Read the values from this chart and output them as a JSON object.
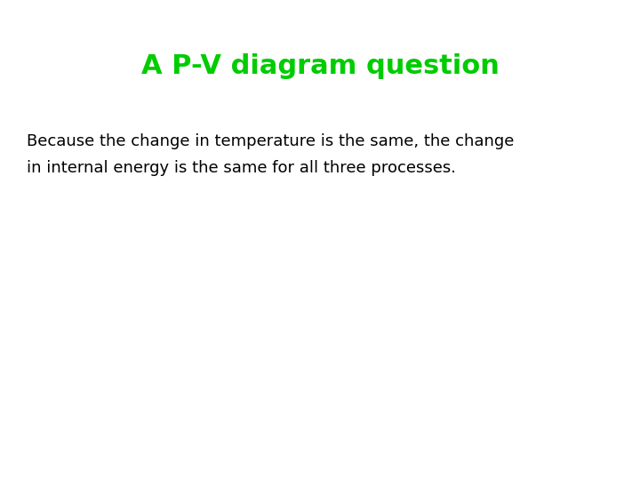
{
  "title": "A P-V diagram question",
  "title_color": "#00cc00",
  "title_fontsize": 22,
  "title_fontweight": "bold",
  "body_text_line1": "Because the change in temperature is the same, the change",
  "body_text_line2": "in internal energy is the same for all three processes.",
  "body_color": "#000000",
  "body_fontsize": 13,
  "background_color": "#ffffff",
  "fig_width": 7.2,
  "fig_height": 5.4,
  "dpi": 100
}
